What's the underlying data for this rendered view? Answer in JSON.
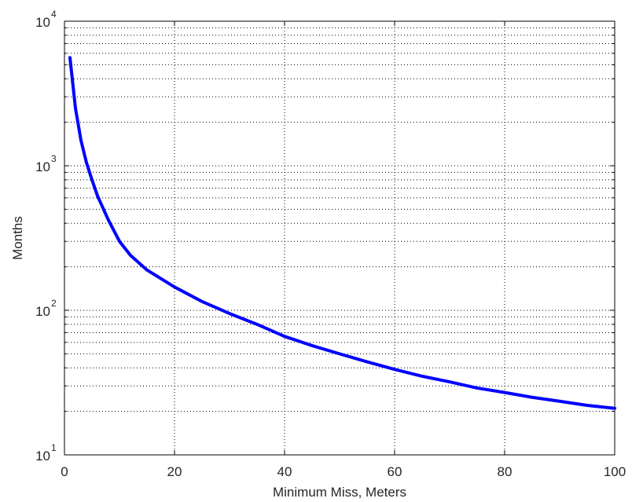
{
  "chart_data": {
    "type": "line",
    "title": "",
    "xlabel": "Minimum Miss, Meters",
    "ylabel": "Months",
    "xlim": [
      0,
      100
    ],
    "ylim": [
      10,
      10000
    ],
    "yscale": "log",
    "grid": true,
    "x_ticks": [
      0,
      20,
      40,
      60,
      80,
      100
    ],
    "x_tick_labels": [
      "0",
      "20",
      "40",
      "60",
      "80",
      "100"
    ],
    "y_tick_labels": [
      {
        "value": 10,
        "base": "10",
        "exp": "1"
      },
      {
        "value": 100,
        "base": "10",
        "exp": "2"
      },
      {
        "value": 1000,
        "base": "10",
        "exp": "3"
      },
      {
        "value": 10000,
        "base": "10",
        "exp": "4"
      }
    ],
    "line_color": "#0000ff",
    "series": [
      {
        "x": [
          1,
          2,
          3,
          4,
          5,
          6,
          7,
          8,
          10,
          12,
          15,
          20,
          25,
          30,
          35,
          40,
          45,
          50,
          55,
          60,
          65,
          70,
          75,
          80,
          85,
          90,
          95,
          100
        ],
        "values": [
          5600,
          2500,
          1500,
          1050,
          800,
          620,
          510,
          420,
          300,
          240,
          190,
          145,
          115,
          95,
          80,
          66,
          57,
          50,
          44,
          39,
          35,
          32,
          29,
          27,
          25,
          23.5,
          22,
          21
        ]
      }
    ]
  }
}
